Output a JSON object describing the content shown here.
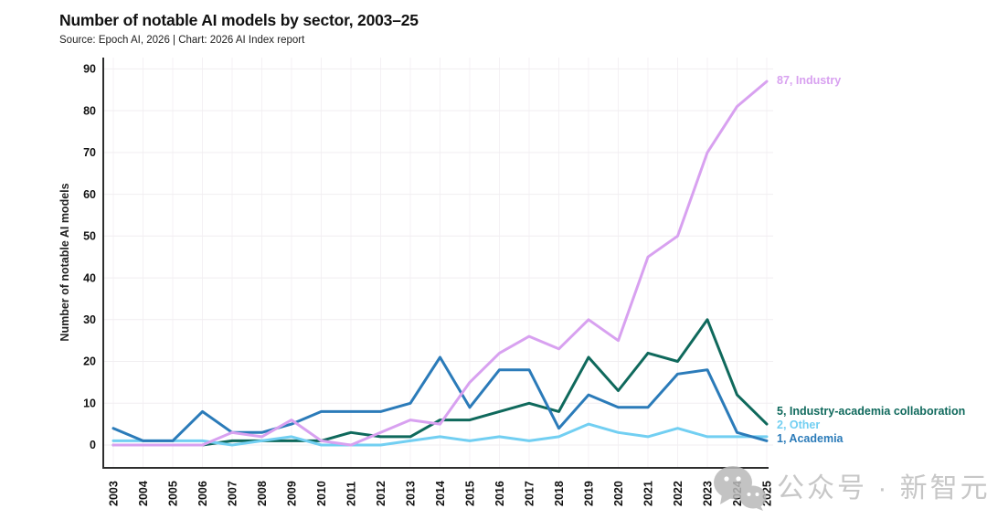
{
  "header": {
    "title": "Number of notable AI models by sector, 2003–25",
    "source": "Source: Epoch AI, 2026 | Chart: 2026 AI Index report"
  },
  "watermark": {
    "icon": "wechat-icon",
    "text": "公众号 · 新智元"
  },
  "chart_data": {
    "type": "line",
    "title": "Number of notable AI models by sector, 2003–25",
    "xlabel": "",
    "ylabel": "Number of notable AI models",
    "ylim": [
      0,
      90
    ],
    "yticks": [
      0,
      10,
      20,
      30,
      40,
      50,
      60,
      70,
      80,
      90
    ],
    "grid": true,
    "legend_position": "line-end-labels",
    "categories": [
      "2003",
      "2004",
      "2005",
      "2006",
      "2007",
      "2008",
      "2009",
      "2010",
      "2011",
      "2012",
      "2013",
      "2014",
      "2015",
      "2016",
      "2017",
      "2018",
      "2019",
      "2020",
      "2021",
      "2022",
      "2023",
      "2024",
      "2025"
    ],
    "series": [
      {
        "name": "Industry",
        "color": "#d8a1f0",
        "end_label": "87, Industry",
        "values": [
          0,
          0,
          0,
          0,
          3,
          2,
          6,
          1,
          0,
          3,
          6,
          5,
          15,
          22,
          26,
          23,
          30,
          25,
          45,
          50,
          70,
          81,
          87
        ]
      },
      {
        "name": "Industry-academia collaboration",
        "color": "#0f695c",
        "end_label": "5, Industry-academia collaboration",
        "values": [
          0,
          0,
          0,
          0,
          1,
          1,
          1,
          1,
          3,
          2,
          2,
          6,
          6,
          8,
          10,
          8,
          21,
          13,
          22,
          20,
          30,
          12,
          5
        ]
      },
      {
        "name": "Other",
        "color": "#72cff2",
        "end_label": "2, Other",
        "values": [
          1,
          1,
          1,
          1,
          0,
          1,
          2,
          0,
          0,
          0,
          1,
          2,
          1,
          2,
          1,
          2,
          5,
          3,
          2,
          4,
          2,
          2,
          2
        ]
      },
      {
        "name": "Academia",
        "color": "#2b7bb9",
        "end_label": "1, Academia",
        "values": [
          4,
          1,
          1,
          8,
          3,
          3,
          5,
          8,
          8,
          8,
          10,
          21,
          9,
          18,
          18,
          4,
          12,
          9,
          9,
          17,
          18,
          3,
          1
        ]
      }
    ],
    "axis_color": "#2d2d2d",
    "gridline_color": "#f1eef1",
    "tick_label_color": "#111111"
  }
}
